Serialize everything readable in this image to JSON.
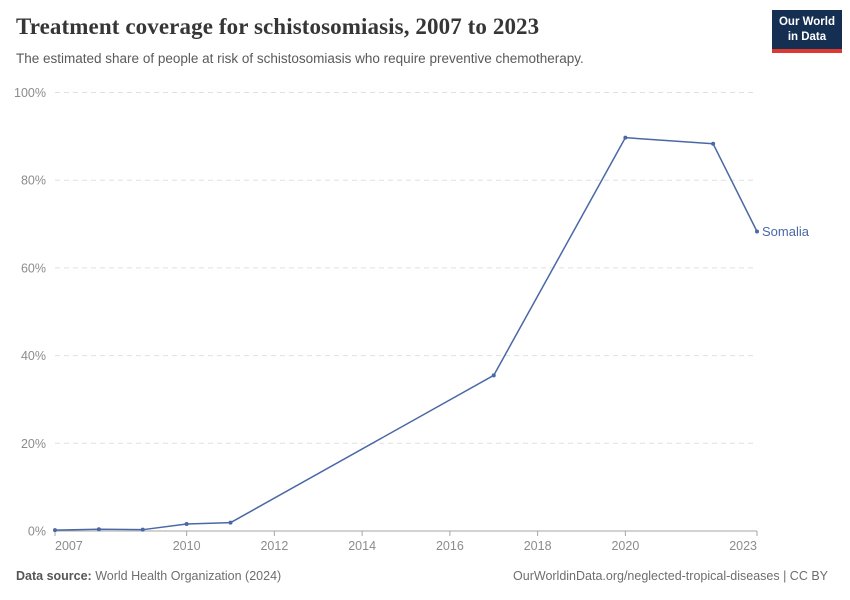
{
  "header": {
    "title": "Treatment coverage for schistosomiasis, 2007 to 2023",
    "subtitle": "The estimated share of people at risk of schistosomiasis who require preventive chemotherapy."
  },
  "logo": {
    "line1": "Our World",
    "line2": "in Data",
    "bg_color": "#142f52",
    "accent_color": "#dc3930"
  },
  "chart_data": {
    "type": "line",
    "title": "Treatment coverage for schistosomiasis, 2007 to 2023",
    "xlabel": "",
    "ylabel": "",
    "xlim": [
      2007,
      2023
    ],
    "ylim": [
      0,
      100
    ],
    "grid": "horizontal dashed",
    "x_ticks": [
      2007,
      2010,
      2012,
      2014,
      2016,
      2018,
      2020,
      2023
    ],
    "y_ticks": [
      0,
      20,
      40,
      60,
      80,
      100
    ],
    "y_tick_suffix": "%",
    "colors": {
      "grid": "#e0e0e0",
      "axis": "#a6a6a6",
      "tick_label": "#8c8c8c"
    },
    "series": [
      {
        "name": "Somalia",
        "color": "#4a68a6",
        "points": [
          {
            "year": 2007,
            "value": 0.2
          },
          {
            "year": 2008,
            "value": 0.4
          },
          {
            "year": 2009,
            "value": 0.3
          },
          {
            "year": 2010,
            "value": 1.6
          },
          {
            "year": 2011,
            "value": 1.9
          },
          {
            "year": 2017,
            "value": 35.5
          },
          {
            "year": 2020,
            "value": 89.7
          },
          {
            "year": 2022,
            "value": 88.3
          },
          {
            "year": 2023,
            "value": 68.3
          }
        ]
      }
    ]
  },
  "footer": {
    "source_label": "Data source:",
    "source_value": " World Health Organization (2024)",
    "link": "OurWorldinData.org/neglected-tropical-diseases | CC BY"
  }
}
